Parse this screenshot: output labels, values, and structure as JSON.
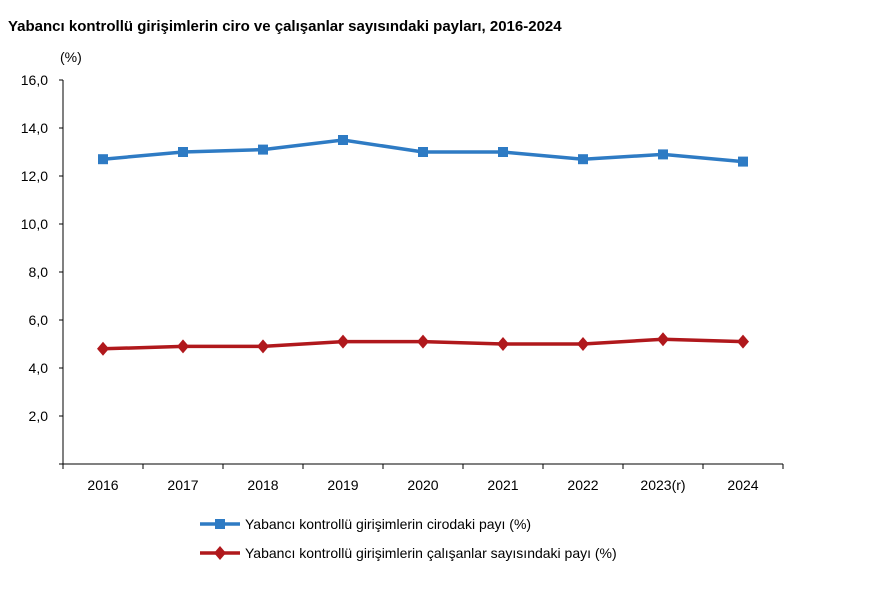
{
  "chart_data": {
    "type": "line",
    "title": "Yabancı kontrollü girişimlerin ciro ve çalışanlar sayısındaki payları, 2016-2024",
    "ylabel": "(%)",
    "xlabel": "",
    "categories": [
      "2016",
      "2017",
      "2018",
      "2019",
      "2020",
      "2021",
      "2022",
      "2023(r)",
      "2024"
    ],
    "ylim": [
      0,
      16
    ],
    "yticks": [
      "2,0",
      "4,0",
      "6,0",
      "8,0",
      "10,0",
      "12,0",
      "14,0",
      "16,0"
    ],
    "grid": false,
    "legend_position": "bottom",
    "series": [
      {
        "name": "Yabancı kontrollü girişimlerin cirodaki payı (%)",
        "color": "#2E7BC4",
        "marker": "square",
        "values": [
          12.7,
          13.0,
          13.1,
          13.5,
          13.0,
          13.0,
          12.7,
          12.9,
          12.6
        ]
      },
      {
        "name": "Yabancı kontrollü girişimlerin çalışanlar sayısındaki payı (%)",
        "color": "#B0181C",
        "marker": "diamond",
        "values": [
          4.8,
          4.9,
          4.9,
          5.1,
          5.1,
          5.0,
          5.0,
          5.2,
          5.1
        ]
      }
    ]
  }
}
